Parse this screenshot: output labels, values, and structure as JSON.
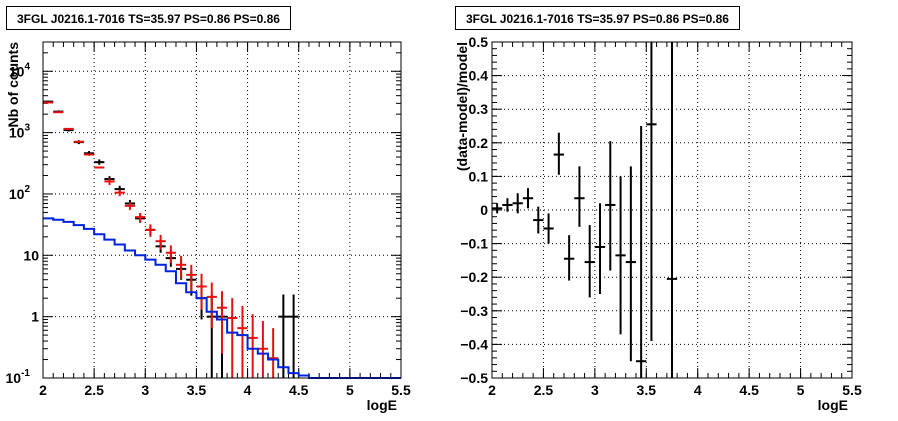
{
  "chart_data": [
    {
      "type": "scatter",
      "title": "3FGL J0216.1-7016 TS=35.97 PS=0.86 PS=0.86",
      "xlabel": "logE",
      "ylabel": "Nb of counts",
      "xlim": [
        2,
        5.5
      ],
      "ylim": [
        0.1,
        30000
      ],
      "ylog": true,
      "grid": true,
      "xticks": [
        {
          "v": 2,
          "label": "2"
        },
        {
          "v": 2.5,
          "label": "2.5"
        },
        {
          "v": 3,
          "label": "3"
        },
        {
          "v": 3.5,
          "label": "3.5"
        },
        {
          "v": 4,
          "label": "4"
        },
        {
          "v": 4.5,
          "label": "4.5"
        },
        {
          "v": 5,
          "label": "5"
        },
        {
          "v": 5.5,
          "label": "5.5"
        }
      ],
      "yticks": [
        {
          "v": 0.1,
          "label": "10",
          "sup": "-1"
        },
        {
          "v": 1,
          "label": "1",
          "sup": ""
        },
        {
          "v": 10,
          "label": "10",
          "sup": ""
        },
        {
          "v": 100,
          "label": "10",
          "sup": "2"
        },
        {
          "v": 1000,
          "label": "10",
          "sup": "3"
        },
        {
          "v": 10000,
          "label": "10",
          "sup": "4"
        }
      ],
      "series": [
        {
          "color": "#000000",
          "style": "errorbars",
          "halfwidth": 0.05,
          "points": [
            {
              "x": 2.05,
              "y": 3200,
              "lo": 3080,
              "hi": 3320
            },
            {
              "x": 2.15,
              "y": 2200,
              "lo": 2100,
              "hi": 2300
            },
            {
              "x": 2.25,
              "y": 1100,
              "lo": 1040,
              "hi": 1170
            },
            {
              "x": 2.35,
              "y": 700,
              "lo": 650,
              "hi": 750
            },
            {
              "x": 2.45,
              "y": 460,
              "lo": 420,
              "hi": 500
            },
            {
              "x": 2.55,
              "y": 330,
              "lo": 300,
              "hi": 365
            },
            {
              "x": 2.65,
              "y": 175,
              "lo": 155,
              "hi": 195
            },
            {
              "x": 2.75,
              "y": 120,
              "lo": 105,
              "hi": 136
            },
            {
              "x": 2.85,
              "y": 70,
              "lo": 60,
              "hi": 80
            },
            {
              "x": 2.95,
              "y": 40,
              "lo": 34,
              "hi": 47
            },
            {
              "x": 3.05,
              "y": 26,
              "lo": 21,
              "hi": 31
            },
            {
              "x": 3.15,
              "y": 14,
              "lo": 11,
              "hi": 18
            },
            {
              "x": 3.25,
              "y": 9,
              "lo": 6.5,
              "hi": 12
            },
            {
              "x": 3.35,
              "y": 6,
              "lo": 4,
              "hi": 8.5
            },
            {
              "x": 3.45,
              "y": 4,
              "lo": 2.2,
              "hi": 5.5
            },
            {
              "x": 3.55,
              "y": 2,
              "lo": 0.9,
              "hi": 3.5
            },
            {
              "x": 3.65,
              "y": 1,
              "lo": 0.1,
              "hi": 2.3
            },
            {
              "x": 3.75,
              "y": 1,
              "lo": 0.1,
              "hi": 2.3
            },
            {
              "x": 4.35,
              "y": 1,
              "lo": 0.1,
              "hi": 2.3
            },
            {
              "x": 4.45,
              "y": 1,
              "lo": 0.1,
              "hi": 2.3
            }
          ]
        },
        {
          "color": "#e8110f",
          "style": "errorbars",
          "halfwidth": 0.05,
          "points": [
            {
              "x": 2.05,
              "y": 3100,
              "lo": 3100,
              "hi": 3100
            },
            {
              "x": 2.15,
              "y": 2150,
              "lo": 2150,
              "hi": 2150
            },
            {
              "x": 2.25,
              "y": 1150,
              "lo": 1150,
              "hi": 1150
            },
            {
              "x": 2.35,
              "y": 710,
              "lo": 710,
              "hi": 710
            },
            {
              "x": 2.45,
              "y": 440,
              "lo": 440,
              "hi": 440
            },
            {
              "x": 2.55,
              "y": 270,
              "lo": 270,
              "hi": 270
            },
            {
              "x": 2.65,
              "y": 160,
              "lo": 140,
              "hi": 180
            },
            {
              "x": 2.75,
              "y": 105,
              "lo": 92,
              "hi": 118
            },
            {
              "x": 2.85,
              "y": 64,
              "lo": 55,
              "hi": 73
            },
            {
              "x": 2.95,
              "y": 42,
              "lo": 35,
              "hi": 49
            },
            {
              "x": 3.05,
              "y": 26,
              "lo": 20,
              "hi": 32
            },
            {
              "x": 3.15,
              "y": 17,
              "lo": 12.5,
              "hi": 21.5
            },
            {
              "x": 3.25,
              "y": 11,
              "lo": 7.5,
              "hi": 14.5
            },
            {
              "x": 3.35,
              "y": 7,
              "lo": 4.2,
              "hi": 9.8
            },
            {
              "x": 3.45,
              "y": 4.8,
              "lo": 2.6,
              "hi": 7
            },
            {
              "x": 3.55,
              "y": 3.1,
              "lo": 1.3,
              "hi": 5
            },
            {
              "x": 3.65,
              "y": 2.1,
              "lo": 0.65,
              "hi": 3.6
            },
            {
              "x": 3.75,
              "y": 1.4,
              "lo": 0.25,
              "hi": 2.6
            },
            {
              "x": 3.85,
              "y": 0.95,
              "lo": 0.1,
              "hi": 2
            },
            {
              "x": 3.95,
              "y": 0.65,
              "lo": 0.1,
              "hi": 1.5
            },
            {
              "x": 4.05,
              "y": 0.45,
              "lo": 0.1,
              "hi": 1.1
            },
            {
              "x": 4.15,
              "y": 0.3,
              "lo": 0.1,
              "hi": 0.85
            },
            {
              "x": 4.25,
              "y": 0.21,
              "lo": 0.1,
              "hi": 0.65
            }
          ]
        },
        {
          "color": "#0022dd",
          "style": "step",
          "edges_start": 2.0,
          "bin_width": 0.1,
          "values": [
            40,
            38,
            35,
            31,
            27,
            22,
            18,
            15,
            12,
            10,
            8.5,
            7,
            5.5,
            3.5,
            2.5,
            2.0,
            1.2,
            0.9,
            0.55,
            0.5,
            0.3,
            0.25,
            0.2,
            0.15,
            0.12,
            0.11,
            0.1,
            0.1,
            0.1,
            0.1,
            0.1,
            0.1,
            0.1,
            0.1,
            0.1
          ]
        }
      ]
    },
    {
      "type": "scatter",
      "title": "3FGL J0216.1-7016 TS=35.97 PS=0.86 PS=0.86",
      "xlabel": "logE",
      "ylabel": "(data-model)/model",
      "xlim": [
        2,
        5.5
      ],
      "ylim": [
        -0.5,
        0.5
      ],
      "ylog": false,
      "grid": true,
      "xticks": [
        {
          "v": 2,
          "label": "2"
        },
        {
          "v": 2.5,
          "label": "2.5"
        },
        {
          "v": 3,
          "label": "3"
        },
        {
          "v": 3.5,
          "label": "3.5"
        },
        {
          "v": 4,
          "label": "4"
        },
        {
          "v": 4.5,
          "label": "4.5"
        },
        {
          "v": 5,
          "label": "5"
        },
        {
          "v": 5.5,
          "label": "5.5"
        }
      ],
      "yticks": [
        {
          "v": -0.5,
          "label": "−0.5"
        },
        {
          "v": -0.4,
          "label": "−0.4"
        },
        {
          "v": -0.3,
          "label": "−0.3"
        },
        {
          "v": -0.2,
          "label": "−0.2"
        },
        {
          "v": -0.1,
          "label": "−0.1"
        },
        {
          "v": 0,
          "label": "0"
        },
        {
          "v": 0.1,
          "label": "0.1"
        },
        {
          "v": 0.2,
          "label": "0.2"
        },
        {
          "v": 0.3,
          "label": "0.3"
        },
        {
          "v": 0.4,
          "label": "0.4"
        },
        {
          "v": 0.5,
          "label": "0.5"
        }
      ],
      "series": [
        {
          "color": "#000000",
          "style": "errorbars",
          "halfwidth": 0.05,
          "points": [
            {
              "x": 2.05,
              "y": 0.005,
              "lo": -0.01,
              "hi": 0.02
            },
            {
              "x": 2.15,
              "y": 0.015,
              "lo": -0.005,
              "hi": 0.035
            },
            {
              "x": 2.25,
              "y": 0.02,
              "lo": -0.01,
              "hi": 0.05
            },
            {
              "x": 2.35,
              "y": 0.035,
              "lo": 0.005,
              "hi": 0.065
            },
            {
              "x": 2.45,
              "y": -0.03,
              "lo": -0.07,
              "hi": 0.01
            },
            {
              "x": 2.55,
              "y": -0.055,
              "lo": -0.1,
              "hi": -0.01
            },
            {
              "x": 2.65,
              "y": 0.165,
              "lo": 0.105,
              "hi": 0.23
            },
            {
              "x": 2.75,
              "y": -0.145,
              "lo": -0.21,
              "hi": -0.075
            },
            {
              "x": 2.85,
              "y": 0.035,
              "lo": -0.05,
              "hi": 0.13
            },
            {
              "x": 2.95,
              "y": -0.155,
              "lo": -0.26,
              "hi": -0.045
            },
            {
              "x": 3.05,
              "y": -0.11,
              "lo": -0.25,
              "hi": 0.02
            },
            {
              "x": 3.15,
              "y": 0.015,
              "lo": -0.18,
              "hi": 0.205
            },
            {
              "x": 3.25,
              "y": -0.135,
              "lo": -0.37,
              "hi": 0.1
            },
            {
              "x": 3.35,
              "y": -0.155,
              "lo": -0.45,
              "hi": 0.13
            },
            {
              "x": 3.45,
              "y": -0.45,
              "lo": -0.5,
              "hi": 0.25
            },
            {
              "x": 3.55,
              "y": 0.255,
              "lo": -0.39,
              "hi": 0.5
            },
            {
              "x": 3.75,
              "y": -0.205,
              "lo": -0.5,
              "hi": 0.5
            }
          ]
        }
      ]
    }
  ]
}
